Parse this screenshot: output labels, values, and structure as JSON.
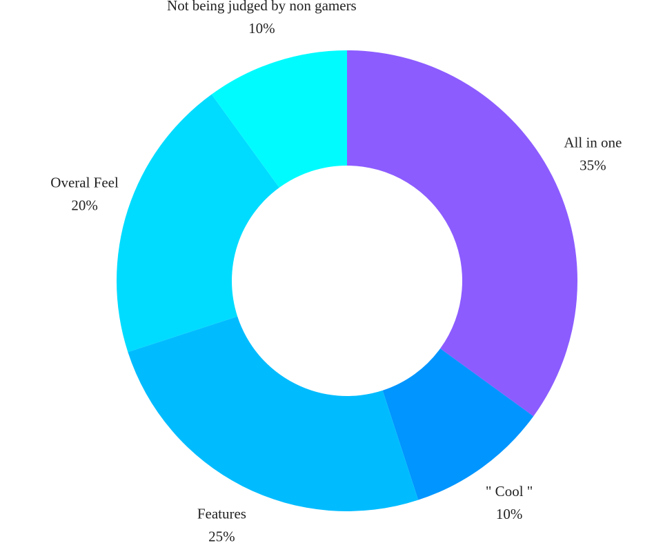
{
  "chart_data": {
    "type": "pie",
    "variant": "donut",
    "title": "",
    "start_angle_deg": 0,
    "direction": "clockwise",
    "slices": [
      {
        "label": "All in one",
        "value": 35,
        "display": "35%",
        "color": "#8c5cff"
      },
      {
        "label": "\" Cool \"",
        "value": 10,
        "display": "10%",
        "color": "#0095ff"
      },
      {
        "label": "Features",
        "value": 25,
        "display": "25%",
        "color": "#00bcff"
      },
      {
        "label": "Overal Feel",
        "value": 20,
        "display": "20%",
        "color": "#00dcff"
      },
      {
        "label": "Not being judged by non gamers",
        "value": 10,
        "display": "10%",
        "color": "#00fbff"
      }
    ]
  }
}
